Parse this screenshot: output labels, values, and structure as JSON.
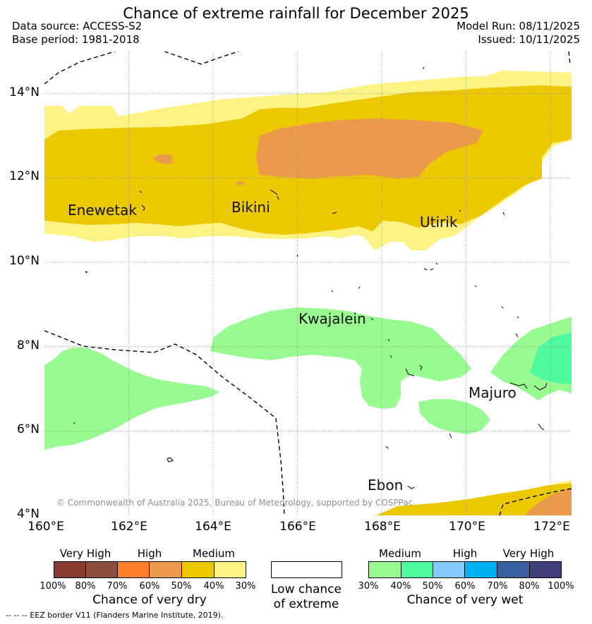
{
  "title": "Chance of extreme rainfall for December 2025",
  "meta": {
    "data_source": "Data source: ACCESS-S2",
    "base_period": "Base period: 1981-2018",
    "model_run": "Model Run: 08/11/2025",
    "issued": "Issued: 10/11/2025"
  },
  "map": {
    "lat_range": [
      4,
      15
    ],
    "lon_range": [
      160,
      172.5
    ],
    "lat_ticks": [
      "14°N",
      "12°N",
      "10°N",
      "8°N",
      "6°N",
      "4°N"
    ],
    "lon_ticks": [
      "160°E",
      "162°E",
      "164°E",
      "166°E",
      "168°E",
      "170°E",
      "172°E"
    ],
    "places": {
      "enewetak": "Enewetak",
      "bikini": "Bikini",
      "utirik": "Utirik",
      "kwajalein": "Kwajalein",
      "majuro": "Majuro",
      "ebon": "Ebon"
    },
    "copyright": "© Commonwealth of Australia 2025, Bureau of Meteorology, supported by COSPPac"
  },
  "legend": {
    "dry": {
      "headers": [
        "Very High",
        "High",
        "Medium"
      ],
      "percent_labels": [
        "100%",
        "80%",
        "70%",
        "60%",
        "50%",
        "40%",
        "30%"
      ],
      "colors": [
        "#8b3a2f",
        "#8d4f3b",
        "#fd8028",
        "#eb9a4b",
        "#ecc800",
        "#fdf385"
      ],
      "caption": "Chance of very dry"
    },
    "neutral": {
      "caption_line1": "Low chance",
      "caption_line2": "of extreme",
      "color": "#ffffff"
    },
    "wet": {
      "headers": [
        "Medium",
        "High",
        "Very High"
      ],
      "percent_labels": [
        "30%",
        "40%",
        "50%",
        "60%",
        "70%",
        "80%",
        "100%"
      ],
      "colors": [
        "#98fb92",
        "#4ffa9f",
        "#84cafc",
        "#00b1f1",
        "#39609e",
        "#3f3e78"
      ],
      "caption": "Chance of very wet"
    }
  },
  "eez_note": "-- -- -- EEZ border V11 (Flanders Marine Institute, 2019)."
}
